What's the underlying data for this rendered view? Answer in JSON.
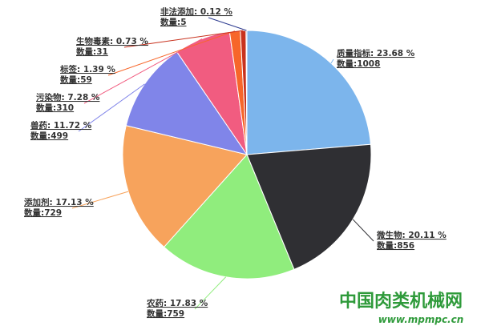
{
  "chart_data": {
    "type": "pie",
    "labels": [
      "质量指标: 23.68 %",
      "微生物: 20.11 %",
      "农药: 17.83 %",
      "添加剂: 17.13 %",
      "兽药: 11.72 %",
      "污染物: 7.28 %",
      "标签: 1.39 %",
      "生物毒素: 0.73 %",
      "非法添加: 0.12 %"
    ],
    "values": [
      1008,
      856,
      759,
      729,
      499,
      310,
      59,
      31,
      5
    ],
    "value_labels": [
      "数量:1008",
      "数量:856",
      "数量:759",
      "数量:729",
      "数量:499",
      "数量:310",
      "数量:59",
      "数量:31",
      "数量:5"
    ],
    "colors": [
      "#7cb5ec",
      "#2f2f33",
      "#90ed7d",
      "#f7a35c",
      "#8085e9",
      "#f15c80",
      "#f7662a",
      "#c8321e",
      "#2b3a8f"
    ]
  },
  "watermark": {
    "title": "中国肉类机械网",
    "url": "www.mpmpc.cn"
  }
}
